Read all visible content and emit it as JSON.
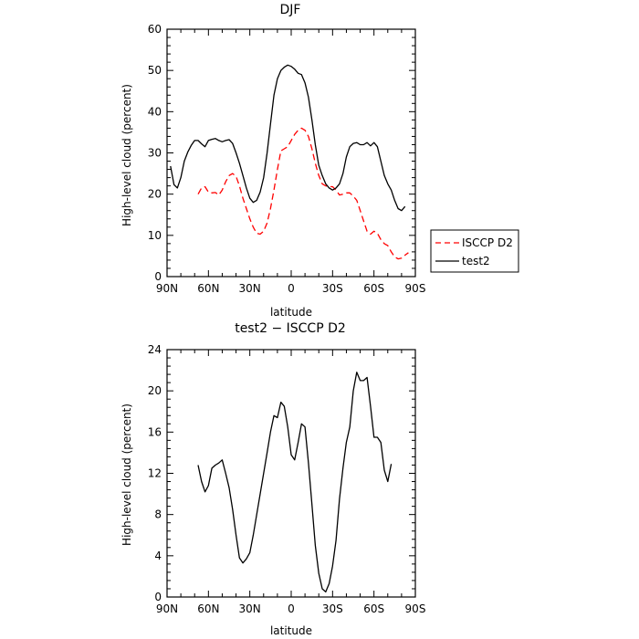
{
  "chart_data": [
    {
      "type": "line",
      "title": "DJF",
      "xlabel": "latitude",
      "ylabel": "High-level cloud (percent)",
      "xlim": [
        90,
        -90
      ],
      "ylim": [
        0,
        60
      ],
      "xticks": [
        {
          "value": 90,
          "label": "90N"
        },
        {
          "value": 60,
          "label": "60N"
        },
        {
          "value": 30,
          "label": "30N"
        },
        {
          "value": 0,
          "label": "0"
        },
        {
          "value": -30,
          "label": "30S"
        },
        {
          "value": -60,
          "label": "60S"
        },
        {
          "value": -90,
          "label": "90S"
        }
      ],
      "yticks": [
        0,
        10,
        20,
        30,
        40,
        50,
        60
      ],
      "legend_position": "right",
      "series": [
        {
          "name": "ISCCP D2",
          "color": "#ff0000",
          "style": "dashed",
          "points": [
            [
              67.5,
              20
            ],
            [
              65,
              21.5
            ],
            [
              62.5,
              21.8
            ],
            [
              60,
              20.5
            ],
            [
              57.5,
              20.3
            ],
            [
              55,
              20.4
            ],
            [
              52.5,
              19.8
            ],
            [
              50,
              21
            ],
            [
              47.5,
              23
            ],
            [
              45,
              24.5
            ],
            [
              42.5,
              25
            ],
            [
              40,
              24.3
            ],
            [
              37.5,
              22
            ],
            [
              35,
              19
            ],
            [
              32.5,
              16.5
            ],
            [
              30,
              14
            ],
            [
              27.5,
              12
            ],
            [
              25,
              10.5
            ],
            [
              22.5,
              10.3
            ],
            [
              20,
              11
            ],
            [
              17.5,
              13
            ],
            [
              15,
              16.5
            ],
            [
              12.5,
              21
            ],
            [
              10,
              26
            ],
            [
              7.5,
              30.5
            ],
            [
              5,
              31
            ],
            [
              2.5,
              31.5
            ],
            [
              0,
              33
            ],
            [
              -2.5,
              34.5
            ],
            [
              -5,
              35.5
            ],
            [
              -7.5,
              36
            ],
            [
              -10,
              35.5
            ],
            [
              -12.5,
              34
            ],
            [
              -15,
              31
            ],
            [
              -17.5,
              27.5
            ],
            [
              -20,
              24.5
            ],
            [
              -22.5,
              22.5
            ],
            [
              -25,
              22
            ],
            [
              -27.5,
              21.8
            ],
            [
              -30,
              21.8
            ],
            [
              -32.5,
              21
            ],
            [
              -35,
              19.8
            ],
            [
              -37.5,
              20
            ],
            [
              -40,
              20.3
            ],
            [
              -42.5,
              20.3
            ],
            [
              -45,
              19.5
            ],
            [
              -47.5,
              18.5
            ],
            [
              -50,
              16
            ],
            [
              -52.5,
              13.5
            ],
            [
              -55,
              11
            ],
            [
              -57.5,
              10.3
            ],
            [
              -60,
              11
            ],
            [
              -62.5,
              10.5
            ],
            [
              -65,
              9
            ],
            [
              -67.5,
              8
            ],
            [
              -70,
              7.5
            ],
            [
              -72.5,
              6
            ],
            [
              -75,
              4.8
            ],
            [
              -77.5,
              4.3
            ],
            [
              -80,
              4.5
            ],
            [
              -82.5,
              5.2
            ],
            [
              -85,
              5.8
            ]
          ]
        },
        {
          "name": "test2",
          "color": "#000000",
          "style": "solid",
          "points": [
            [
              87.5,
              26.8
            ],
            [
              85,
              22.3
            ],
            [
              82.5,
              21.5
            ],
            [
              80,
              24
            ],
            [
              77.5,
              28
            ],
            [
              75,
              30.2
            ],
            [
              72.5,
              31.8
            ],
            [
              70,
              33
            ],
            [
              67.5,
              33
            ],
            [
              65,
              32.2
            ],
            [
              62.5,
              31.5
            ],
            [
              60,
              33
            ],
            [
              57.5,
              33.3
            ],
            [
              55,
              33.5
            ],
            [
              52.5,
              33
            ],
            [
              50,
              32.7
            ],
            [
              47.5,
              33
            ],
            [
              45,
              33.2
            ],
            [
              42.5,
              32.3
            ],
            [
              40,
              30
            ],
            [
              37.5,
              27.5
            ],
            [
              35,
              24.5
            ],
            [
              32.5,
              21.5
            ],
            [
              30,
              19
            ],
            [
              27.5,
              18
            ],
            [
              25,
              18.5
            ],
            [
              22.5,
              20.5
            ],
            [
              20,
              24
            ],
            [
              17.5,
              30
            ],
            [
              15,
              37
            ],
            [
              12.5,
              44
            ],
            [
              10,
              48
            ],
            [
              7.5,
              50
            ],
            [
              5,
              50.8
            ],
            [
              2.5,
              51.3
            ],
            [
              0,
              51
            ],
            [
              -2.5,
              50.3
            ],
            [
              -5,
              49.3
            ],
            [
              -7.5,
              49
            ],
            [
              -10,
              47
            ],
            [
              -12.5,
              43.5
            ],
            [
              -15,
              38
            ],
            [
              -17.5,
              32
            ],
            [
              -20,
              27
            ],
            [
              -22.5,
              24.5
            ],
            [
              -25,
              22.5
            ],
            [
              -27.5,
              21.5
            ],
            [
              -30,
              21
            ],
            [
              -32.5,
              21.5
            ],
            [
              -35,
              22.5
            ],
            [
              -37.5,
              25
            ],
            [
              -40,
              29
            ],
            [
              -42.5,
              31.5
            ],
            [
              -45,
              32.3
            ],
            [
              -47.5,
              32.5
            ],
            [
              -50,
              32
            ],
            [
              -52.5,
              32
            ],
            [
              -55,
              32.5
            ],
            [
              -57.5,
              31.7
            ],
            [
              -60,
              32.5
            ],
            [
              -62.5,
              31.5
            ],
            [
              -65,
              28
            ],
            [
              -67.5,
              24.5
            ],
            [
              -70,
              22.5
            ],
            [
              -72.5,
              21
            ],
            [
              -75,
              18.5
            ],
            [
              -77.5,
              16.5
            ],
            [
              -80,
              16
            ],
            [
              -82.5,
              17
            ]
          ]
        }
      ]
    },
    {
      "type": "line",
      "title": "test2 − ISCCP D2",
      "xlabel": "latitude",
      "ylabel": "High-level cloud (percent)",
      "xlim": [
        90,
        -90
      ],
      "ylim": [
        0,
        24
      ],
      "xticks": [
        {
          "value": 90,
          "label": "90N"
        },
        {
          "value": 60,
          "label": "60N"
        },
        {
          "value": 30,
          "label": "30N"
        },
        {
          "value": 0,
          "label": "0"
        },
        {
          "value": -30,
          "label": "30S"
        },
        {
          "value": -60,
          "label": "60S"
        },
        {
          "value": -90,
          "label": "90S"
        }
      ],
      "yticks": [
        0,
        4,
        8,
        12,
        16,
        20,
        24
      ],
      "series": [
        {
          "color": "#000000",
          "style": "solid",
          "points": [
            [
              67.5,
              12.8
            ],
            [
              65,
              11.2
            ],
            [
              62.5,
              10.2
            ],
            [
              60,
              10.8
            ],
            [
              57.5,
              12.5
            ],
            [
              55,
              12.8
            ],
            [
              52.5,
              13
            ],
            [
              50,
              13.3
            ],
            [
              47.5,
              12
            ],
            [
              45,
              10.6
            ],
            [
              42.5,
              8.5
            ],
            [
              40,
              6
            ],
            [
              37.5,
              3.8
            ],
            [
              35,
              3.3
            ],
            [
              32.5,
              3.7
            ],
            [
              30,
              4.3
            ],
            [
              27.5,
              6
            ],
            [
              25,
              8
            ],
            [
              22.5,
              10
            ],
            [
              20,
              12
            ],
            [
              17.5,
              14
            ],
            [
              15,
              16
            ],
            [
              12.5,
              17.6
            ],
            [
              10,
              17.4
            ],
            [
              7.5,
              18.9
            ],
            [
              5,
              18.5
            ],
            [
              2.5,
              16.5
            ],
            [
              0,
              13.8
            ],
            [
              -2.5,
              13.3
            ],
            [
              -5,
              15
            ],
            [
              -7.5,
              16.8
            ],
            [
              -10,
              16.5
            ],
            [
              -12.5,
              13
            ],
            [
              -15,
              9
            ],
            [
              -17.5,
              5
            ],
            [
              -20,
              2.3
            ],
            [
              -22.5,
              0.8
            ],
            [
              -25,
              0.5
            ],
            [
              -27.5,
              1.3
            ],
            [
              -30,
              3
            ],
            [
              -32.5,
              5.5
            ],
            [
              -35,
              9.5
            ],
            [
              -37.5,
              12.5
            ],
            [
              -40,
              15
            ],
            [
              -42.5,
              16.5
            ],
            [
              -45,
              20
            ],
            [
              -47.5,
              21.8
            ],
            [
              -50,
              21
            ],
            [
              -52.5,
              21
            ],
            [
              -55,
              21.3
            ],
            [
              -57.5,
              18.5
            ],
            [
              -60,
              15.5
            ],
            [
              -62.5,
              15.5
            ],
            [
              -65,
              15
            ],
            [
              -67.5,
              12.3
            ],
            [
              -70,
              11.2
            ],
            [
              -72.5,
              12.9
            ]
          ]
        }
      ]
    }
  ]
}
